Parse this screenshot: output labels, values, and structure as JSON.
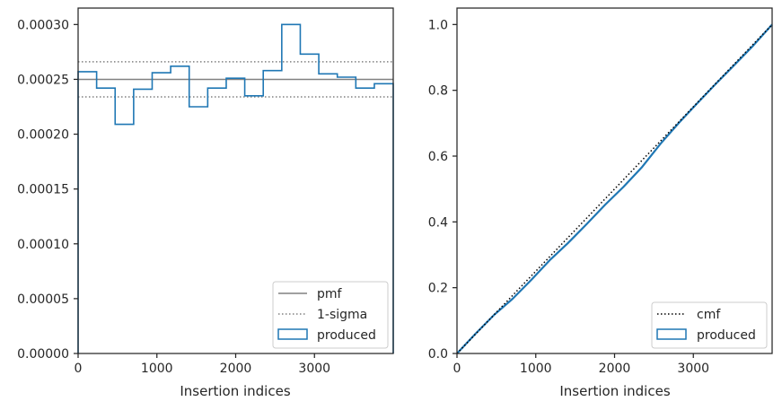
{
  "chart_data": [
    {
      "type": "line",
      "xlabel": "Insertion indices",
      "ylabel": "",
      "xlim": [
        0,
        4000
      ],
      "ylim": [
        0,
        0.000315
      ],
      "xticks": [
        0,
        1000,
        2000,
        3000
      ],
      "xtick_labels": [
        "0",
        "1000",
        "2000",
        "3000"
      ],
      "yticks": [
        0,
        5e-05,
        0.0001,
        0.00015,
        0.0002,
        0.00025,
        0.0003
      ],
      "ytick_labels": [
        "0.00000",
        "0.00005",
        "0.00010",
        "0.00015",
        "0.00020",
        "0.00025",
        "0.00030"
      ],
      "grid": false,
      "legend": {
        "location": "lower right",
        "entries": [
          {
            "label": "pmf",
            "style": "solid",
            "color": "#808080"
          },
          {
            "label": "1-sigma",
            "style": "dotted",
            "color": "#808080"
          },
          {
            "label": "produced",
            "style": "step-patch",
            "color": "#1f77b4"
          }
        ]
      },
      "reference_lines": {
        "pmf": 0.00025,
        "sigma_upper": 0.000266,
        "sigma_lower": 0.000234
      },
      "series": [
        {
          "name": "produced",
          "kind": "histogram-step",
          "bin_edges": [
            0,
            235,
            470,
            705,
            940,
            1175,
            1410,
            1645,
            1880,
            2115,
            2350,
            2585,
            2820,
            3055,
            3290,
            3525,
            3760,
            4000
          ],
          "values": [
            0.000257,
            0.000242,
            0.000209,
            0.000241,
            0.000256,
            0.000262,
            0.000225,
            0.000242,
            0.000251,
            0.000235,
            0.000258,
            0.0003,
            0.000273,
            0.000255,
            0.000252,
            0.000242,
            0.000246
          ]
        }
      ]
    },
    {
      "type": "line",
      "xlabel": "Insertion indices",
      "ylabel": "",
      "xlim": [
        0,
        4000
      ],
      "ylim": [
        0,
        1.05
      ],
      "xticks": [
        0,
        1000,
        2000,
        3000
      ],
      "xtick_labels": [
        "0",
        "1000",
        "2000",
        "3000"
      ],
      "yticks": [
        0,
        0.2,
        0.4,
        0.6,
        0.8,
        1.0
      ],
      "ytick_labels": [
        "0.0",
        "0.2",
        "0.4",
        "0.6",
        "0.8",
        "1.0"
      ],
      "grid": false,
      "legend": {
        "location": "lower right",
        "entries": [
          {
            "label": "cmf",
            "style": "dotted",
            "color": "#000000"
          },
          {
            "label": "produced",
            "style": "step-patch",
            "color": "#1f77b4"
          }
        ]
      },
      "series": [
        {
          "name": "cmf",
          "x": [
            0,
            4000
          ],
          "y": [
            0,
            1.0
          ]
        },
        {
          "name": "produced",
          "x": [
            0,
            235,
            470,
            705,
            940,
            1175,
            1410,
            1645,
            1880,
            2115,
            2350,
            2585,
            2820,
            3055,
            3290,
            3525,
            3760,
            4000
          ],
          "y": [
            0,
            0.06,
            0.117,
            0.166,
            0.223,
            0.283,
            0.336,
            0.393,
            0.452,
            0.507,
            0.567,
            0.638,
            0.702,
            0.762,
            0.821,
            0.878,
            0.936,
            1.0
          ]
        }
      ]
    }
  ]
}
